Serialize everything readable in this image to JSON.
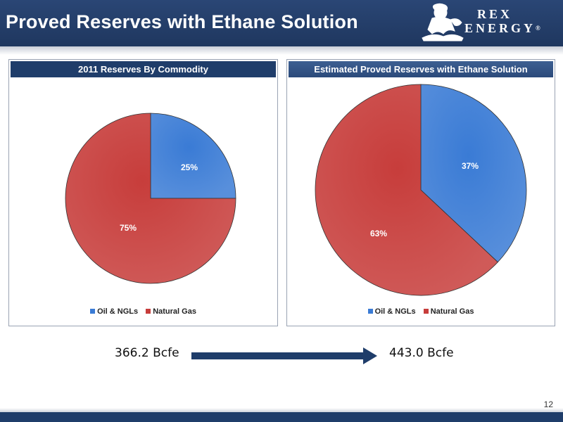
{
  "header": {
    "title": "Proved Reserves with Ethane Solution",
    "logo_text_line1": "REX",
    "logo_text_line2": "ENERGY",
    "logo_mark": "®"
  },
  "colors": {
    "header_bg": "#22406b",
    "oil_ngls": "#3a7bd5",
    "natural_gas": "#c73d3b"
  },
  "chart_data": [
    {
      "type": "pie",
      "title": "2011 Reserves By Commodity",
      "categories": [
        "Oil & NGLs",
        "Natural Gas"
      ],
      "values": [
        25,
        75
      ],
      "labels": [
        "25%",
        "75%"
      ],
      "colors": [
        "#3a7bd5",
        "#c73d3b"
      ],
      "legend": "bottom",
      "total_label": "366.2 Bcfe"
    },
    {
      "type": "pie",
      "title": "Estimated Proved Reserves with Ethane Solution",
      "categories": [
        "Oil & NGLs",
        "Natural Gas"
      ],
      "values": [
        37,
        63
      ],
      "labels": [
        "37%",
        "63%"
      ],
      "colors": [
        "#3a7bd5",
        "#c73d3b"
      ],
      "legend": "bottom",
      "total_label": "443.0 Bcfe"
    }
  ],
  "page_number": "12"
}
